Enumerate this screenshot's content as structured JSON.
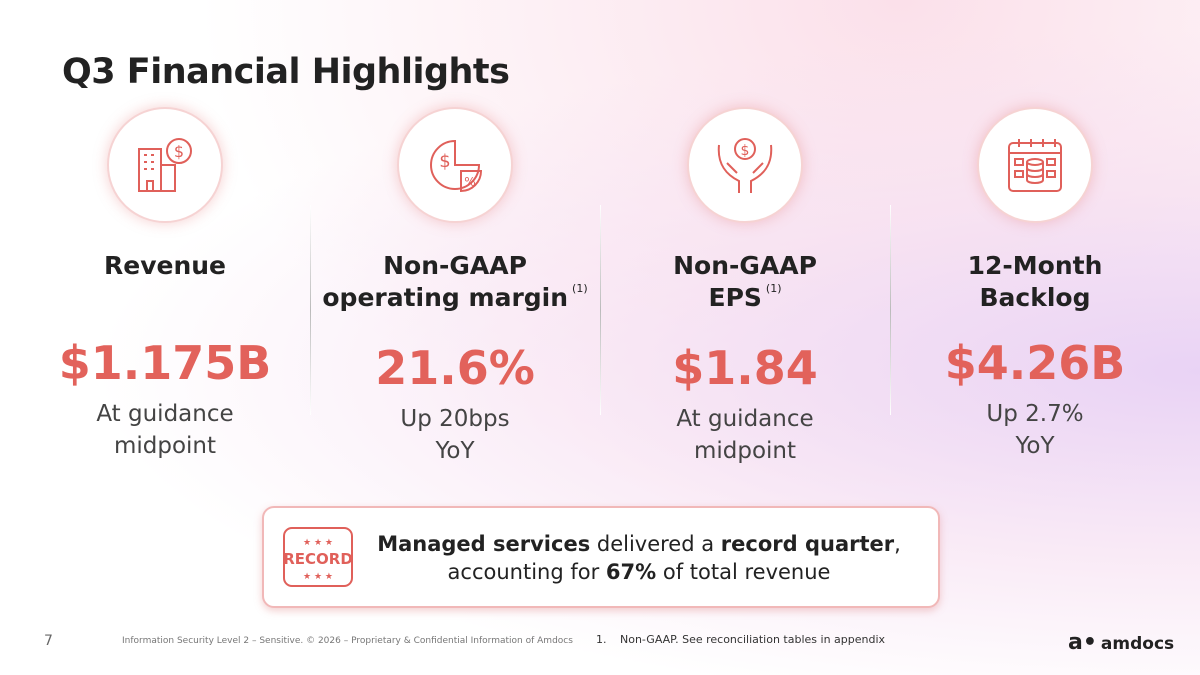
{
  "header": {
    "title": "Q3 Financial Highlights"
  },
  "kpis": [
    {
      "label": [
        "Revenue"
      ],
      "value": "$1.175B",
      "note": [
        "At guidance",
        "midpoint"
      ]
    },
    {
      "label": [
        "Non-GAAP",
        "operating margin"
      ],
      "footnote_ref": "(1)",
      "value": "21.6%",
      "note": [
        "Up 20bps",
        "YoY"
      ]
    },
    {
      "label": [
        "Non-GAAP",
        "EPS"
      ],
      "footnote_ref": "(1)",
      "value": "$1.84",
      "note": [
        "At guidance",
        "midpoint"
      ]
    },
    {
      "label": [
        "12-Month",
        "Backlog"
      ],
      "value": "$4.26B",
      "note": [
        "Up 2.7%",
        "YoY"
      ]
    }
  ],
  "callout": {
    "badge": "RECORD",
    "line1": [
      {
        "text": "Managed services",
        "bold": true
      },
      {
        "text": " delivered a ",
        "bold": false
      },
      {
        "text": "record quarter",
        "bold": true
      },
      {
        "text": ",",
        "bold": false
      }
    ],
    "line2": [
      {
        "text": "accounting for ",
        "bold": false
      },
      {
        "text": "67%",
        "bold": true
      },
      {
        "text": " of total revenue",
        "bold": false
      }
    ]
  },
  "footer": {
    "page": "7",
    "disclaimer": "Information Security Level 2 – Sensitive. © 2026 – Proprietary & Confidential Information of Amdocs",
    "footnote_number": "1.",
    "footnote_text": "Non-GAAP. See reconciliation tables in appendix",
    "logo": "amdocs"
  }
}
